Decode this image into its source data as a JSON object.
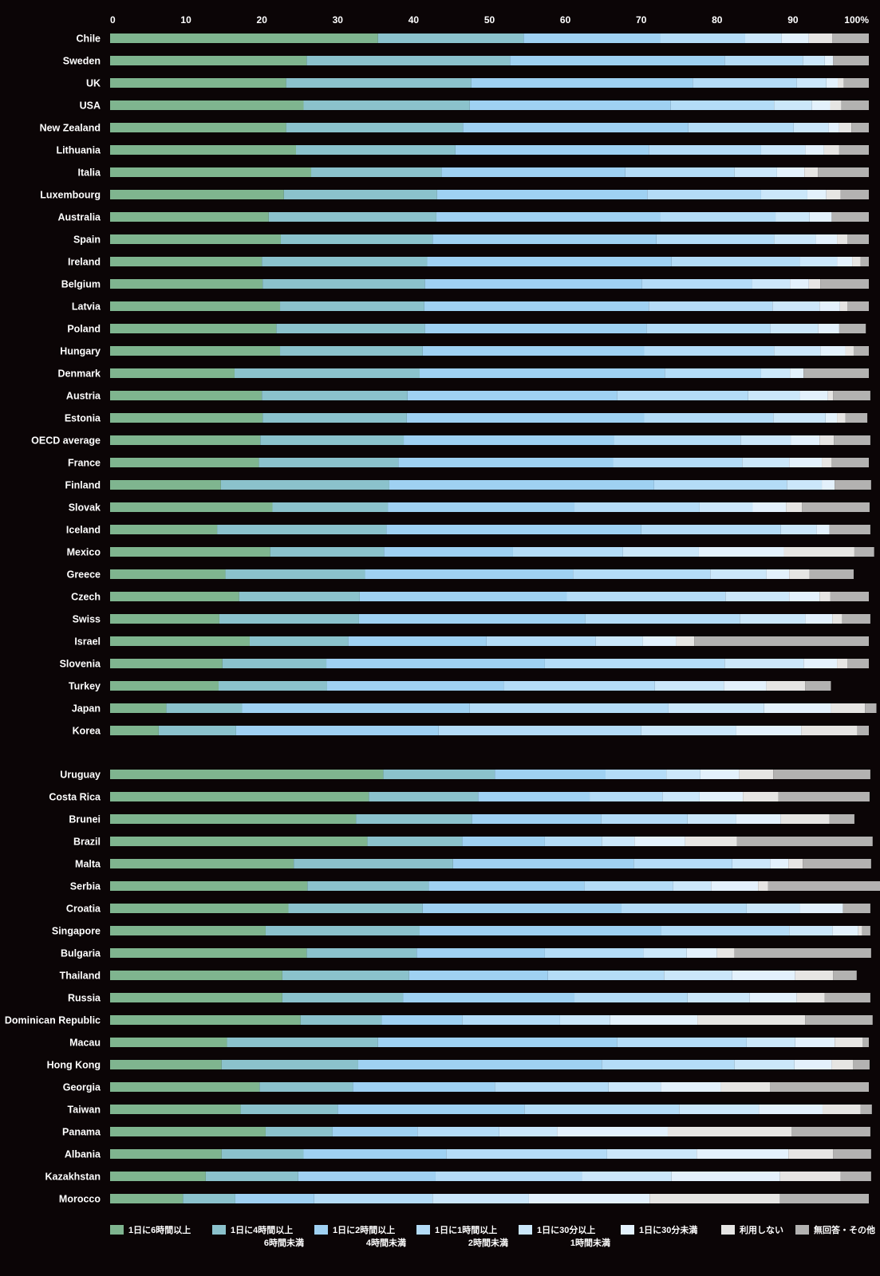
{
  "chart_data": {
    "type": "bar",
    "stacked": true,
    "orientation": "horizontal",
    "percent": true,
    "xlim": [
      0,
      100
    ],
    "xticks": [
      "0",
      "10",
      "20",
      "30",
      "40",
      "50",
      "60",
      "70",
      "80",
      "90",
      "100%"
    ],
    "grid": false,
    "legend_position": "bottom",
    "colors": [
      "#7fb58f",
      "#8bc2cc",
      "#9fd1f2",
      "#b4dcf7",
      "#cbe7fa",
      "#e3f1fc",
      "#e6e5e3",
      "#b3b2b1"
    ],
    "legend": [
      {
        "line1": "1日に6時間以上",
        "line2": ""
      },
      {
        "line1": "1日に4時間以上",
        "line2": "6時間未満"
      },
      {
        "line1": "1日に2時間以上",
        "line2": "4時間未満"
      },
      {
        "line1": "1日に1時間以上",
        "line2": "2時間未満"
      },
      {
        "line1": "1日に30分以上",
        "line2": "1時間未満"
      },
      {
        "line1": "1日に30分未満",
        "line2": ""
      },
      {
        "line1": "利用しない",
        "line2": ""
      },
      {
        "line1": "無回答・その他",
        "line2": ""
      }
    ],
    "groups": [
      {
        "rows": [
          {
            "label": "Chile",
            "values": [
              35.3,
              19.2,
              18.0,
              11.2,
              4.8,
              3.6,
              3.1,
              4.8
            ]
          },
          {
            "label": "Sweden",
            "values": [
              25.9,
              26.8,
              28.3,
              10.3,
              2.9,
              1.1,
              0.0,
              4.7
            ]
          },
          {
            "label": "UK",
            "values": [
              23.2,
              24.4,
              29.2,
              13.7,
              3.9,
              1.5,
              0.8,
              3.3
            ]
          },
          {
            "label": "USA",
            "values": [
              25.5,
              21.9,
              26.5,
              13.6,
              5.0,
              2.4,
              1.5,
              3.6
            ]
          },
          {
            "label": "New Zealand",
            "values": [
              23.2,
              23.3,
              29.7,
              13.9,
              4.6,
              1.4,
              1.6,
              2.3
            ]
          },
          {
            "label": "Lithuania",
            "values": [
              24.5,
              21.0,
              25.5,
              14.8,
              5.8,
              2.5,
              2.0,
              3.9
            ]
          },
          {
            "label": "Italia",
            "values": [
              26.5,
              17.2,
              24.2,
              14.4,
              5.6,
              3.6,
              1.8,
              6.7
            ]
          },
          {
            "label": "Luxembourg",
            "values": [
              22.9,
              20.2,
              27.7,
              15.0,
              6.1,
              2.5,
              1.9,
              3.7
            ]
          },
          {
            "label": "Australia",
            "values": [
              20.9,
              22.1,
              29.5,
              15.2,
              4.5,
              2.9,
              0.0,
              4.9
            ]
          },
          {
            "label": "Spain",
            "values": [
              22.5,
              20.0,
              29.5,
              15.5,
              5.5,
              2.8,
              1.4,
              2.8
            ]
          },
          {
            "label": "Ireland",
            "values": [
              20.0,
              21.8,
              32.2,
              16.9,
              4.9,
              2.0,
              1.1,
              1.1
            ]
          },
          {
            "label": "Belgium",
            "values": [
              20.1,
              21.4,
              28.6,
              14.5,
              5.0,
              2.5,
              1.5,
              6.4
            ]
          },
          {
            "label": "Latvia",
            "values": [
              22.4,
              19.0,
              29.6,
              16.3,
              6.2,
              2.7,
              1.0,
              2.8
            ]
          },
          {
            "label": "Poland",
            "values": [
              21.9,
              19.6,
              29.2,
              16.3,
              6.3,
              2.8,
              0.0,
              3.5
            ]
          },
          {
            "label": "Hungary",
            "values": [
              22.4,
              18.8,
              29.2,
              17.1,
              6.1,
              3.3,
              1.1,
              2.0
            ]
          },
          {
            "label": "Denmark",
            "values": [
              16.4,
              24.4,
              32.3,
              12.7,
              3.8,
              1.8,
              0.0,
              8.6
            ]
          },
          {
            "label": "Austria",
            "values": [
              20.0,
              19.2,
              27.6,
              17.3,
              6.8,
              3.7,
              0.7,
              4.9
            ]
          },
          {
            "label": "Estonia",
            "values": [
              20.1,
              19.0,
              31.3,
              17.0,
              6.9,
              1.5,
              1.1,
              2.9
            ]
          },
          {
            "label": "OECD average",
            "values": [
              19.8,
              18.9,
              27.7,
              16.7,
              6.6,
              3.8,
              1.9,
              4.8
            ]
          },
          {
            "label": "France",
            "values": [
              19.6,
              18.4,
              28.3,
              17.0,
              6.2,
              4.3,
              1.3,
              4.9
            ]
          },
          {
            "label": "Finland",
            "values": [
              14.6,
              22.2,
              34.9,
              17.5,
              4.6,
              1.7,
              0.0,
              4.8
            ]
          },
          {
            "label": "Slovak",
            "values": [
              21.4,
              15.2,
              24.6,
              16.5,
              7.0,
              4.4,
              2.1,
              8.9
            ]
          },
          {
            "label": "Iceland",
            "values": [
              14.1,
              22.3,
              33.6,
              18.4,
              4.7,
              1.7,
              0.0,
              5.4
            ]
          },
          {
            "label": "Mexico",
            "values": [
              21.1,
              15.0,
              17.0,
              14.5,
              10.0,
              11.2,
              9.3,
              2.6
            ]
          },
          {
            "label": "Greece",
            "values": [
              15.2,
              18.4,
              27.4,
              18.1,
              7.4,
              3.0,
              2.7,
              5.8
            ]
          },
          {
            "label": "Czech",
            "values": [
              17.0,
              15.9,
              27.3,
              20.9,
              8.4,
              4.0,
              1.4,
              5.1
            ]
          },
          {
            "label": "Swiss",
            "values": [
              14.4,
              18.4,
              29.8,
              20.4,
              8.6,
              3.6,
              1.3,
              3.7
            ]
          },
          {
            "label": "Israel",
            "values": [
              18.4,
              13.0,
              18.2,
              14.4,
              6.2,
              4.4,
              2.4,
              23.0
            ]
          },
          {
            "label": "Slovenia",
            "values": [
              14.8,
              13.7,
              28.8,
              23.7,
              10.4,
              4.4,
              1.4,
              2.8
            ]
          },
          {
            "label": "Turkey",
            "values": [
              14.3,
              14.3,
              23.3,
              19.9,
              9.1,
              5.6,
              5.1,
              3.4
            ]
          },
          {
            "label": "Japan",
            "values": [
              7.4,
              10.0,
              30.0,
              26.2,
              12.6,
              8.8,
              4.5,
              1.5
            ]
          },
          {
            "label": "Korea",
            "values": [
              6.4,
              10.2,
              26.7,
              26.7,
              12.5,
              8.6,
              7.4,
              1.5
            ]
          }
        ]
      },
      {
        "rows": [
          {
            "label": "Uruguay",
            "values": [
              36.0,
              14.7,
              14.6,
              8.0,
              4.5,
              5.1,
              4.5,
              12.8
            ]
          },
          {
            "label": "Costa Rica",
            "values": [
              34.1,
              14.4,
              14.7,
              9.6,
              4.9,
              5.7,
              4.7,
              12.0
            ]
          },
          {
            "label": "Brunei",
            "values": [
              32.4,
              15.3,
              17.0,
              11.4,
              6.4,
              5.9,
              6.4,
              3.3
            ]
          },
          {
            "label": "Brazil",
            "values": [
              33.9,
              12.5,
              10.9,
              7.5,
              4.3,
              6.7,
              6.8,
              17.9
            ]
          },
          {
            "label": "Malta",
            "values": [
              24.2,
              21.0,
              23.8,
              13.0,
              5.0,
              2.4,
              1.9,
              9.0
            ]
          },
          {
            "label": "Serbia",
            "values": [
              26.0,
              16.0,
              20.5,
              11.7,
              5.0,
              6.2,
              1.3,
              15.5
            ]
          },
          {
            "label": "Croatia",
            "values": [
              23.5,
              17.7,
              26.2,
              16.5,
              7.0,
              5.7,
              0.0,
              3.6
            ]
          },
          {
            "label": "Singapore",
            "values": [
              20.5,
              20.3,
              31.8,
              16.9,
              5.7,
              3.4,
              0.5,
              1.1
            ]
          },
          {
            "label": "Bulgaria",
            "values": [
              25.9,
              14.5,
              16.9,
              13.0,
              5.7,
              4.0,
              2.3,
              18.0
            ]
          },
          {
            "label": "Thailand",
            "values": [
              22.7,
              16.7,
              18.3,
              15.3,
              9.0,
              8.3,
              5.0,
              3.1
            ]
          },
          {
            "label": "Russia",
            "values": [
              22.7,
              15.9,
              22.6,
              14.9,
              8.2,
              6.2,
              3.7,
              6.0
            ]
          },
          {
            "label": "Dominican Republic",
            "values": [
              25.1,
              10.7,
              10.6,
              12.9,
              6.6,
              11.5,
              14.2,
              8.9
            ]
          },
          {
            "label": "Macau",
            "values": [
              15.4,
              19.9,
              31.5,
              17.1,
              6.4,
              5.2,
              3.7,
              0.8
            ]
          },
          {
            "label": "Hong Kong",
            "values": [
              14.7,
              18.0,
              32.1,
              17.5,
              7.9,
              4.9,
              2.8,
              2.2
            ]
          },
          {
            "label": "Georgia",
            "values": [
              19.7,
              12.3,
              18.7,
              15.0,
              6.9,
              7.9,
              6.5,
              13.0
            ]
          },
          {
            "label": "Taiwan",
            "values": [
              17.2,
              12.8,
              24.6,
              20.4,
              10.5,
              8.4,
              5.0,
              1.5
            ]
          },
          {
            "label": "Panama",
            "values": [
              20.5,
              8.8,
              11.2,
              10.8,
              7.6,
              14.6,
              16.3,
              10.4
            ]
          },
          {
            "label": "Albania",
            "values": [
              14.7,
              10.8,
              18.8,
              21.2,
              11.8,
              12.1,
              5.9,
              5.0
            ]
          },
          {
            "label": "Kazakhstan",
            "values": [
              12.6,
              12.2,
              18.1,
              19.3,
              11.8,
              14.3,
              8.0,
              4.0
            ]
          },
          {
            "label": "Morocco",
            "values": [
              9.6,
              6.9,
              10.4,
              15.6,
              12.7,
              15.9,
              17.2,
              11.7
            ]
          }
        ]
      }
    ]
  }
}
